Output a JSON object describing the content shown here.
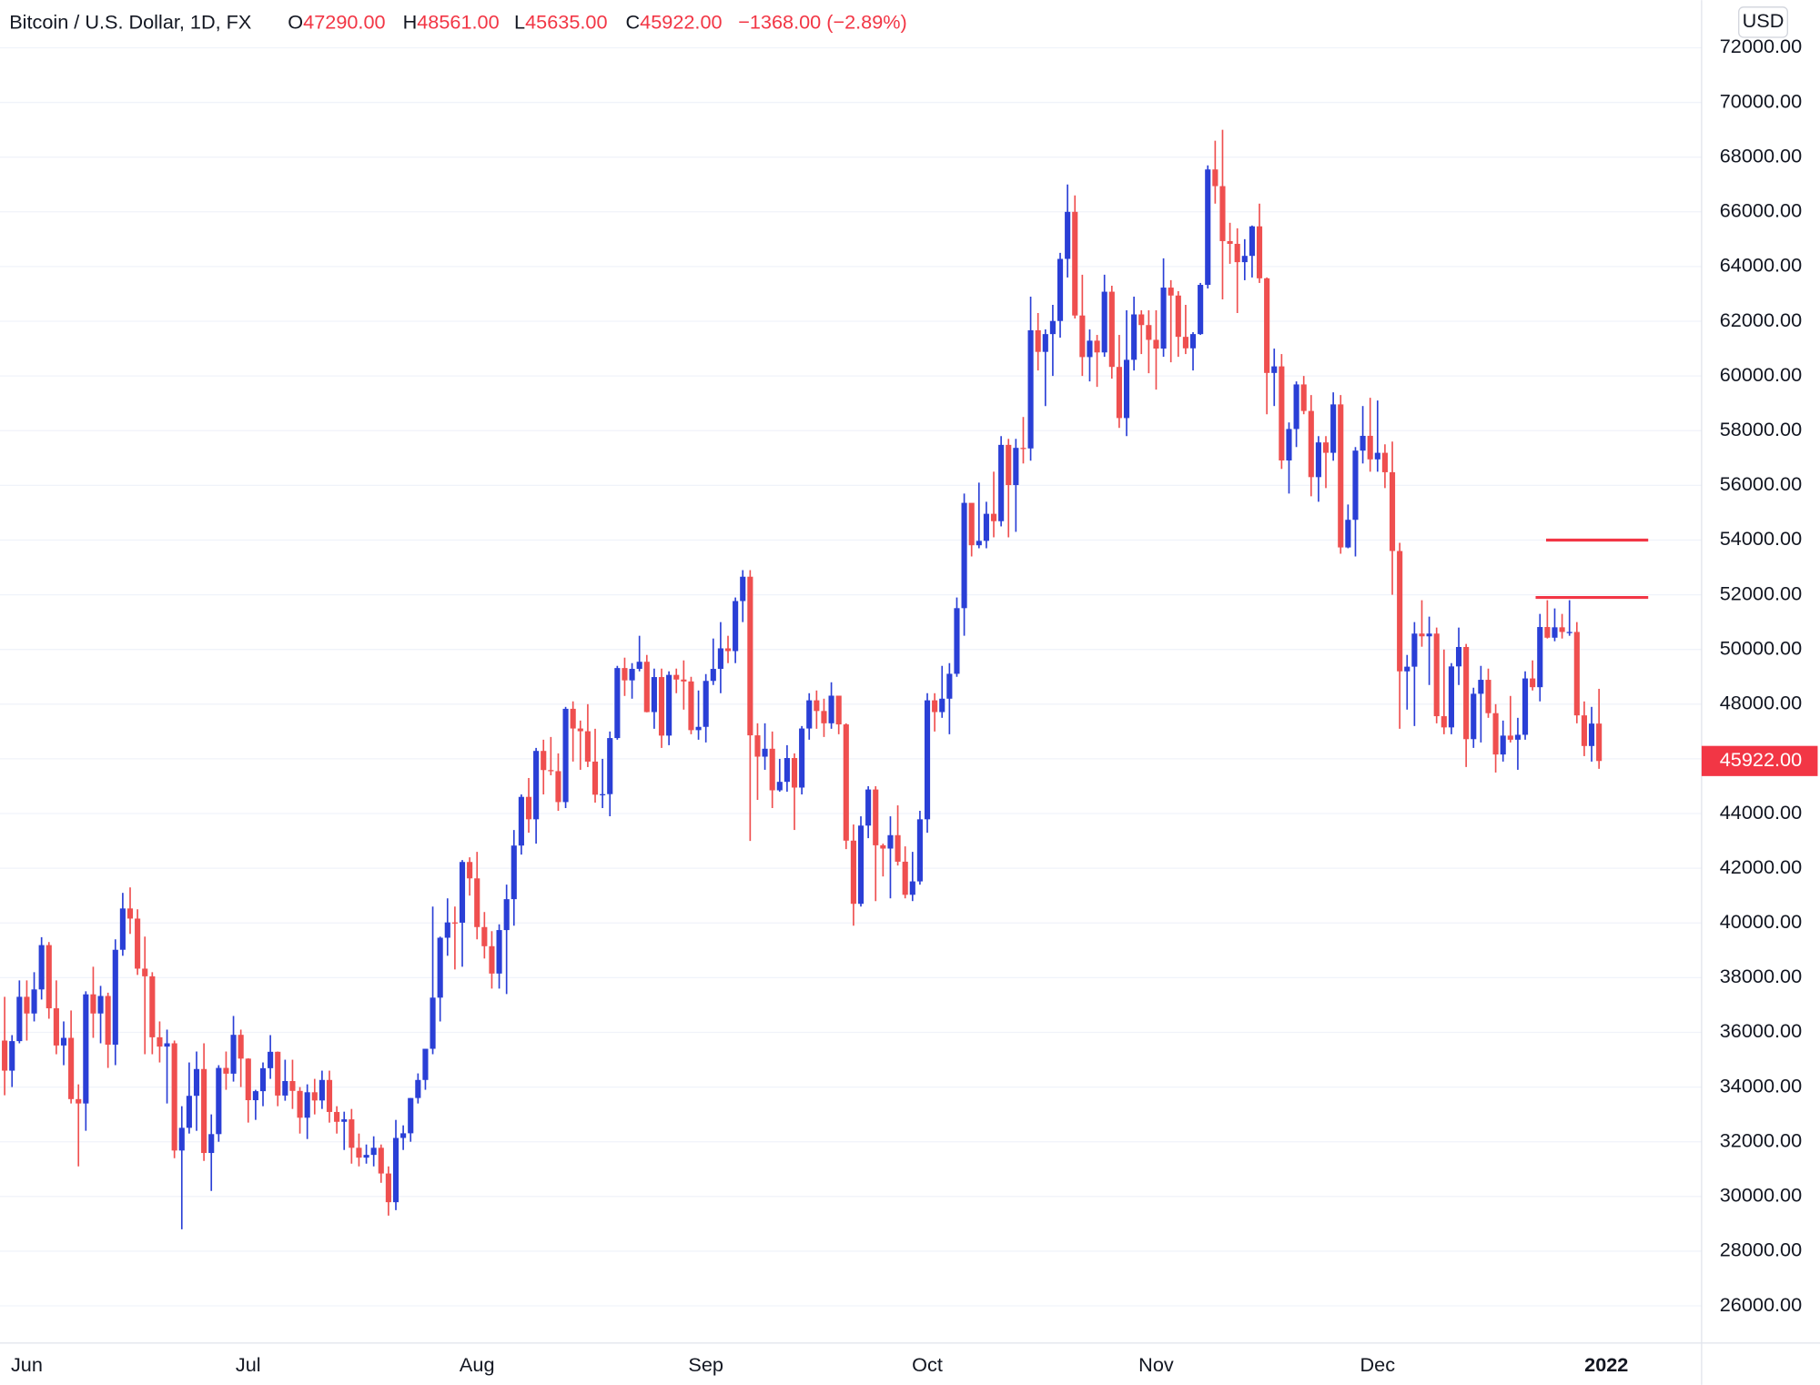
{
  "chart_data": {
    "type": "candlestick",
    "header": {
      "symbol": "Bitcoin / U.S. Dollar, 1D, FX",
      "o_label": "O",
      "o": "47290.00",
      "h_label": "H",
      "h": "48561.00",
      "l_label": "L",
      "l": "45635.00",
      "c_label": "C",
      "c": "45922.00",
      "change": "−1368.00 (−2.89%)"
    },
    "currency": "USD",
    "last_price_label": "45922.00",
    "up_color": "#2a3fd6",
    "down_color": "#ef4f4f",
    "level_color": "#f23645",
    "grid": true,
    "levels": [
      54000,
      51900
    ],
    "open": [
      35700,
      34600,
      35680,
      37300,
      36690,
      37570,
      39190,
      36880,
      35520,
      35800,
      33560,
      33400,
      37390,
      36690,
      37330,
      35550,
      39020,
      40530,
      40160,
      38330,
      38050,
      35820,
      35480,
      35600,
      31680,
      32510,
      33680,
      34660,
      31590,
      32280,
      34700,
      34490,
      35910,
      35040,
      33520,
      33850,
      34690,
      35290,
      33690,
      34220,
      33860,
      32880,
      33810,
      33510,
      34260,
      33090,
      32730,
      32820,
      31780,
      31420,
      31520,
      31780,
      30840,
      29790,
      32140,
      32310,
      33600,
      34260,
      35400,
      37270,
      39460,
      40020,
      40010,
      42230,
      41630,
      39850,
      39150,
      38150,
      39740,
      40870,
      42830,
      44610,
      43790,
      46290,
      45590,
      45550,
      44420,
      47830,
      47110,
      47010,
      45900,
      44690,
      44710,
      46760,
      49320,
      48870,
      49290,
      49550,
      47710,
      48990,
      46850,
      49070,
      48900,
      48830,
      47050,
      47170,
      48850,
      49290,
      50040,
      49940,
      51770,
      52660,
      46860,
      46080,
      46370,
      44850,
      45160,
      46030,
      44950,
      47110,
      48140,
      47750,
      47300,
      48310,
      47260,
      43010,
      40700,
      43560,
      44880,
      42840,
      42720,
      43210,
      42240,
      41030,
      41520,
      43790,
      48140,
      47710,
      48200,
      49110,
      51510,
      55360,
      53810,
      53970,
      54960,
      54690,
      57480,
      56010,
      57370,
      57350,
      61670,
      60880,
      61530,
      62010,
      64280,
      66000,
      62210,
      60690,
      61290,
      60860,
      63080,
      60330,
      58460,
      60590,
      62250,
      61860,
      61320,
      61000,
      63230,
      62940,
      61430,
      61010,
      61530,
      63330,
      67550,
      66940,
      64930,
      64830,
      64160,
      64390,
      65470,
      63570,
      60110,
      60350,
      56910,
      58060,
      59690,
      58720,
      56300,
      57570,
      57190,
      58960,
      53730,
      54740,
      57270,
      57810,
      56950,
      57190,
      56480,
      53600,
      49200,
      49370,
      50580,
      50480,
      50580,
      47560,
      47150,
      49380,
      50090,
      46720,
      48380,
      48890,
      47670,
      46160,
      46850,
      46700,
      46880,
      48940,
      48620,
      50820,
      50430,
      50810,
      50640,
      50640,
      47590,
      46470,
      47290
    ],
    "high": [
      37300,
      35900,
      37900,
      37900,
      38200,
      39480,
      39300,
      37900,
      36400,
      36800,
      34100,
      37500,
      38400,
      37700,
      37450,
      39400,
      41100,
      41300,
      40500,
      39500,
      38200,
      36400,
      36100,
      35700,
      33300,
      34900,
      35300,
      35600,
      33000,
      34800,
      35300,
      36600,
      36100,
      35050,
      33900,
      34900,
      35900,
      35300,
      35000,
      35000,
      34000,
      34100,
      34300,
      34600,
      34600,
      33300,
      33100,
      33200,
      32300,
      31900,
      32200,
      31900,
      31100,
      32800,
      32600,
      33600,
      34500,
      35400,
      40600,
      39500,
      40900,
      40600,
      42300,
      42400,
      42600,
      40400,
      39700,
      39950,
      41400,
      43400,
      44700,
      45300,
      46400,
      46700,
      46800,
      46200,
      47900,
      48100,
      47400,
      48000,
      47100,
      46000,
      47000,
      49400,
      49700,
      49500,
      50500,
      49800,
      49300,
      49300,
      49200,
      49300,
      49600,
      49000,
      48500,
      49100,
      50400,
      51000,
      50500,
      51900,
      52900,
      52900,
      47300,
      47300,
      47000,
      46000,
      46500,
      46200,
      47200,
      48400,
      48500,
      48200,
      48800,
      48300,
      47300,
      43600,
      43900,
      45000,
      45000,
      42900,
      43900,
      44300,
      42800,
      42600,
      44100,
      48400,
      48400,
      49400,
      49500,
      51900,
      55700,
      55200,
      56100,
      55400,
      56500,
      57800,
      57700,
      57700,
      58500,
      62900,
      62300,
      61700,
      62600,
      64500,
      67000,
      66600,
      63700,
      61700,
      61500,
      63700,
      63300,
      61500,
      62400,
      62900,
      62400,
      62400,
      62400,
      64300,
      63500,
      63100,
      62600,
      61600,
      63400,
      67700,
      68600,
      69000,
      65600,
      65400,
      65000,
      65500,
      66300,
      63600,
      61000,
      60800,
      58300,
      59800,
      60000,
      59300,
      57800,
      57800,
      59400,
      59300,
      55300,
      57400,
      58900,
      59200,
      59100,
      57500,
      57600,
      53900,
      49800,
      51000,
      51800,
      51200,
      50800,
      50000,
      49500,
      50800,
      50200,
      48600,
      49400,
      49300,
      48000,
      47400,
      48300,
      47500,
      49200,
      49600,
      51300,
      51800,
      51500,
      51300,
      51800,
      51000,
      48100,
      47900,
      48561
    ],
    "low": [
      33700,
      34000,
      35600,
      35700,
      36400,
      37200,
      36500,
      35200,
      34800,
      33400,
      31100,
      32400,
      35800,
      35600,
      34700,
      34800,
      38800,
      39600,
      38100,
      35200,
      35200,
      34900,
      33400,
      31400,
      28800,
      32300,
      32400,
      31300,
      30200,
      32000,
      33900,
      34200,
      34000,
      32700,
      32800,
      33300,
      34300,
      33300,
      33500,
      33200,
      32300,
      32100,
      33000,
      33200,
      32700,
      32300,
      31700,
      31200,
      31100,
      31200,
      31100,
      30500,
      29300,
      29500,
      31700,
      32000,
      33400,
      33900,
      35200,
      36400,
      38800,
      38300,
      38400,
      41000,
      39400,
      38700,
      37600,
      37600,
      37400,
      39900,
      42500,
      43300,
      42900,
      44700,
      45400,
      44100,
      44200,
      45900,
      45600,
      45700,
      44400,
      44200,
      43900,
      46700,
      48300,
      48200,
      49200,
      47700,
      47100,
      46400,
      46500,
      48400,
      47800,
      46900,
      46700,
      46600,
      48700,
      48400,
      49500,
      49500,
      51000,
      43000,
      44500,
      45600,
      44200,
      44800,
      44800,
      43400,
      44700,
      46700,
      47100,
      46800,
      47100,
      46900,
      42700,
      39900,
      40600,
      43100,
      40800,
      41700,
      40900,
      42100,
      40900,
      40800,
      41400,
      43300,
      47000,
      47500,
      46900,
      49000,
      50500,
      53400,
      53700,
      53700,
      54100,
      54500,
      54100,
      54300,
      56800,
      56900,
      60200,
      58900,
      60000,
      61400,
      63600,
      62100,
      60000,
      59800,
      59600,
      60700,
      59900,
      58100,
      57800,
      60200,
      60800,
      60100,
      59500,
      60700,
      60500,
      60700,
      60800,
      60200,
      61500,
      63200,
      66300,
      62800,
      64100,
      62300,
      63500,
      63600,
      63400,
      58600,
      58900,
      56600,
      55700,
      57400,
      58600,
      55600,
      55400,
      55900,
      56900,
      53500,
      53700,
      53400,
      56800,
      56500,
      56500,
      55900,
      52000,
      47100,
      47800,
      47200,
      50100,
      48700,
      47300,
      46900,
      46900,
      48700,
      45700,
      46400,
      46600,
      47500,
      45500,
      45900,
      46600,
      45600,
      46700,
      48500,
      48100,
      50400,
      50300,
      50400,
      50500,
      47300,
      46100,
      45900,
      45635
    ],
    "close": [
      34600,
      35680,
      37300,
      36690,
      37570,
      39190,
      36880,
      35520,
      35800,
      33560,
      33400,
      37390,
      36690,
      37330,
      35550,
      39020,
      40530,
      40160,
      38330,
      38050,
      35820,
      35480,
      35600,
      31680,
      32510,
      33680,
      34660,
      31590,
      32280,
      34700,
      34490,
      35910,
      35040,
      33520,
      33850,
      34690,
      35290,
      33690,
      34220,
      33860,
      32880,
      33810,
      33510,
      34260,
      33090,
      32730,
      32820,
      31780,
      31420,
      31520,
      31780,
      30840,
      29790,
      32140,
      32310,
      33600,
      34260,
      35400,
      37270,
      39460,
      40020,
      40010,
      42230,
      41630,
      39850,
      39150,
      38150,
      39740,
      40870,
      42830,
      44610,
      43790,
      46290,
      45590,
      45550,
      44420,
      47830,
      47110,
      47010,
      45900,
      44690,
      44710,
      46760,
      49320,
      48870,
      49290,
      49550,
      47710,
      48990,
      46850,
      49070,
      48900,
      48830,
      47050,
      47170,
      48850,
      49290,
      50040,
      49940,
      51770,
      52660,
      46860,
      46080,
      46370,
      44850,
      45160,
      46030,
      44950,
      47110,
      48140,
      47750,
      47300,
      48310,
      47260,
      43010,
      40700,
      43560,
      44880,
      42840,
      42720,
      43210,
      42240,
      41030,
      41520,
      43790,
      48140,
      47710,
      48200,
      49110,
      51510,
      55360,
      53810,
      53970,
      54960,
      54690,
      57480,
      56010,
      57370,
      57350,
      61670,
      60880,
      61530,
      62010,
      64280,
      66000,
      62210,
      60690,
      61290,
      60860,
      63080,
      60330,
      58460,
      60590,
      62250,
      61860,
      61320,
      61000,
      63230,
      62940,
      61430,
      61010,
      61530,
      63330,
      67550,
      66940,
      64930,
      64830,
      64160,
      64390,
      65470,
      63570,
      60110,
      60350,
      56910,
      58060,
      59690,
      58720,
      56300,
      57570,
      57190,
      58960,
      53730,
      54740,
      57270,
      57810,
      56950,
      57190,
      56480,
      53600,
      49200,
      49370,
      50580,
      50480,
      50580,
      47560,
      47150,
      49380,
      50090,
      46720,
      48380,
      48890,
      47670,
      46160,
      46850,
      46700,
      46880,
      48940,
      48620,
      50820,
      50430,
      50810,
      50640,
      50640,
      47590,
      46470,
      47290,
      45922
    ],
    "ylim": [
      24640,
      73740
    ],
    "yticks": [
      {
        "value": 26000,
        "label": "26000.00"
      },
      {
        "value": 28000,
        "label": "28000.00"
      },
      {
        "value": 30000,
        "label": "30000.00"
      },
      {
        "value": 32000,
        "label": "32000.00"
      },
      {
        "value": 34000,
        "label": "34000.00"
      },
      {
        "value": 36000,
        "label": "36000.00"
      },
      {
        "value": 38000,
        "label": "38000.00"
      },
      {
        "value": 40000,
        "label": "40000.00"
      },
      {
        "value": 42000,
        "label": "42000.00"
      },
      {
        "value": 44000,
        "label": "44000.00"
      },
      {
        "value": 46000,
        "label": "46000.00"
      },
      {
        "value": 48000,
        "label": "48000.00"
      },
      {
        "value": 50000,
        "label": "50000.00"
      },
      {
        "value": 52000,
        "label": "52000.00"
      },
      {
        "value": 54000,
        "label": "54000.00"
      },
      {
        "value": 56000,
        "label": "56000.00"
      },
      {
        "value": 58000,
        "label": "58000.00"
      },
      {
        "value": 60000,
        "label": "60000.00"
      },
      {
        "value": 62000,
        "label": "62000.00"
      },
      {
        "value": 64000,
        "label": "64000.00"
      },
      {
        "value": 66000,
        "label": "66000.00"
      },
      {
        "value": 68000,
        "label": "68000.00"
      },
      {
        "value": 70000,
        "label": "70000.00"
      },
      {
        "value": 72000,
        "label": "72000.00"
      }
    ],
    "xlim": [
      -0.63,
      229.9
    ],
    "xticks": [
      {
        "value": 3,
        "label": "Jun"
      },
      {
        "value": 33,
        "label": "Jul"
      },
      {
        "value": 64,
        "label": "Aug"
      },
      {
        "value": 95,
        "label": "Sep"
      },
      {
        "value": 125,
        "label": "Oct"
      },
      {
        "value": 156,
        "label": "Nov"
      },
      {
        "value": 186,
        "label": "Dec"
      },
      {
        "value": 217,
        "label": "2022"
      }
    ]
  }
}
